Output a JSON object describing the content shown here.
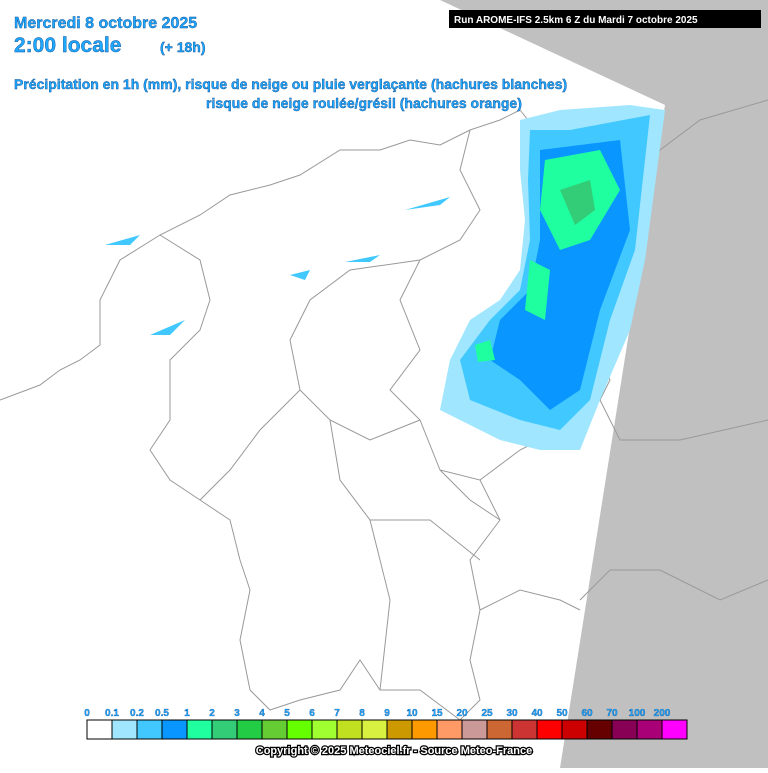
{
  "header": {
    "date": "Mercredi 8 octobre 2025",
    "time": "2:00 locale",
    "offset": "(+ 18h)",
    "line1": "Précipitation en 1h (mm), risque de neige ou pluie verglaçante (hachures blanches)",
    "line2": "risque de neige roulée/grésil (hachures orange)",
    "run": "Run AROME-IFS 2.5km 6 Z du Mardi 7 octobre 2025"
  },
  "legend": {
    "items": [
      {
        "label": "0",
        "color": "#ffffff"
      },
      {
        "label": "0.1",
        "color": "#a0e6ff"
      },
      {
        "label": "0.2",
        "color": "#40c8ff"
      },
      {
        "label": "0.5",
        "color": "#0a96ff"
      },
      {
        "label": "1",
        "color": "#20ffa0"
      },
      {
        "label": "2",
        "color": "#33cc77"
      },
      {
        "label": "3",
        "color": "#22cc44"
      },
      {
        "label": "4",
        "color": "#66cc33"
      },
      {
        "label": "5",
        "color": "#66ff00"
      },
      {
        "label": "6",
        "color": "#a0ff30"
      },
      {
        "label": "7",
        "color": "#c0e020"
      },
      {
        "label": "8",
        "color": "#d8f040"
      },
      {
        "label": "9",
        "color": "#cc9900"
      },
      {
        "label": "10",
        "color": "#ff9900"
      },
      {
        "label": "15",
        "color": "#ff9966"
      },
      {
        "label": "20",
        "color": "#cc9999"
      },
      {
        "label": "25",
        "color": "#cc6633"
      },
      {
        "label": "30",
        "color": "#cc3333"
      },
      {
        "label": "40",
        "color": "#ff0000"
      },
      {
        "label": "50",
        "color": "#cc0000"
      },
      {
        "label": "60",
        "color": "#660000"
      },
      {
        "label": "70",
        "color": "#880055"
      },
      {
        "label": "100",
        "color": "#aa0077"
      },
      {
        "label": "200",
        "color": "#ff00ff"
      }
    ]
  },
  "footer": {
    "copyright": "Copyright © 2025 Meteociel.fr - Source Meteo-France"
  }
}
